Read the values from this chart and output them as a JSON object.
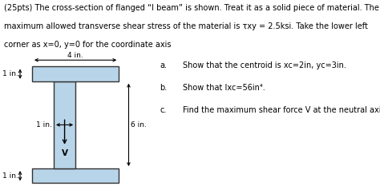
{
  "title_line1": "(25pts) The cross-section of flanged “I beam” is shown. Treat it as a solid piece of material. The",
  "title_line2": "maximum allowed transverse shear stress of the material is τxy = 2.5ksi. Take the lower left",
  "title_line3": "corner as x=0, y=0 for the coordinate axis",
  "item_a": "Show that the centroid is xc=2in, yc=3in.",
  "item_b": "Show that Ixc=56in⁴.",
  "item_c": "Find the maximum shear force V at the neutral axis.",
  "beam_color": "#b8d4e8",
  "beam_edge_color": "#333333",
  "label_4in": "4 in.",
  "label_1in_top": "1 in.",
  "label_1in_web": "1 in.",
  "label_6in": "6 in.",
  "label_1in_bot": "1 in.",
  "label_V": "V",
  "background": "#ffffff",
  "text_color": "#000000",
  "fontsize_main": 7.0,
  "fontsize_label": 6.5
}
